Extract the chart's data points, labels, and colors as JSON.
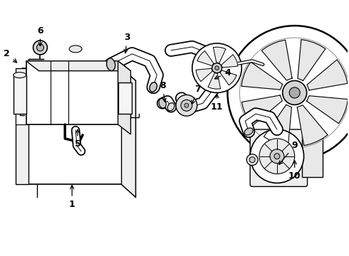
{
  "bg_color": "#ffffff",
  "line_color": "#000000",
  "figsize": [
    4.9,
    3.6
  ],
  "dpi": 100,
  "xlim": [
    0,
    490
  ],
  "ylim": [
    0,
    360
  ]
}
